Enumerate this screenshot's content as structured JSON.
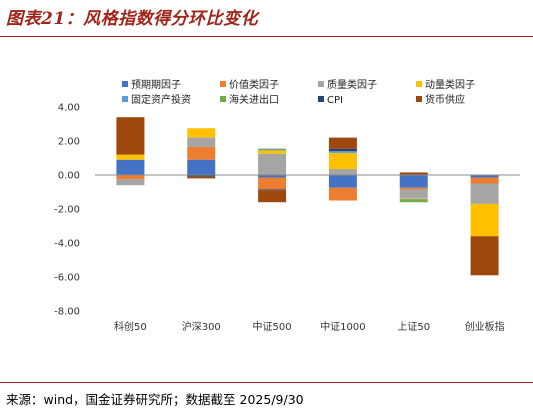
{
  "figure": {
    "title": "图表21：风格指数得分环比变化",
    "source": "来源：wind，国金证券研究所；数据截至 2025/9/30"
  },
  "chart_data": {
    "type": "bar",
    "stacked": true,
    "categories": [
      "科创50",
      "沪深300",
      "中证500",
      "中证1000",
      "上证50",
      "创业板指"
    ],
    "y_ticks": [
      "4.00",
      "2.00",
      "0.00",
      "-2.00",
      "-4.00",
      "-6.00",
      "-8.00"
    ],
    "ylim": [
      -8,
      4
    ],
    "grid": false,
    "legend_position": "top",
    "series": [
      {
        "name": "预期期因子",
        "color": "#4472c4",
        "values": [
          0.9,
          0.9,
          -0.15,
          -0.75,
          -0.75,
          -0.15
        ]
      },
      {
        "name": "价值类因子",
        "color": "#ed7d31",
        "values": [
          -0.25,
          0.75,
          -0.7,
          -0.75,
          -0.1,
          -0.35
        ]
      },
      {
        "name": "质量类因子",
        "color": "#a5a5a5",
        "values": [
          -0.35,
          0.55,
          1.25,
          0.35,
          -0.5,
          -1.2
        ]
      },
      {
        "name": "动量类因子",
        "color": "#ffc000",
        "values": [
          0.3,
          0.55,
          0.2,
          0.95,
          -0.05,
          -1.9
        ]
      },
      {
        "name": "固定资产投资",
        "color": "#5b9bd5",
        "values": [
          0.0,
          0.0,
          0.05,
          0.1,
          -0.05,
          0.0
        ]
      },
      {
        "name": "海关进出口",
        "color": "#70ad47",
        "values": [
          0.0,
          0.0,
          0.05,
          0.0,
          -0.15,
          0.0
        ]
      },
      {
        "name": "CPI",
        "color": "#264478",
        "values": [
          0.0,
          -0.1,
          -0.05,
          0.15,
          0.0,
          0.0
        ]
      },
      {
        "name": "货币供应",
        "color": "#9e480e",
        "values": [
          2.2,
          -0.1,
          -0.7,
          0.65,
          0.15,
          -2.3
        ]
      }
    ]
  }
}
